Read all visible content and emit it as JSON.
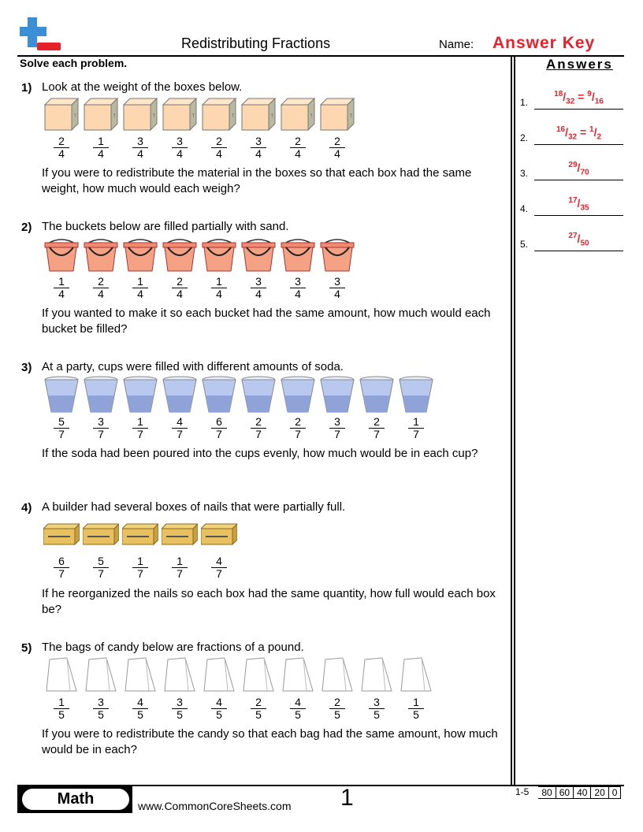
{
  "header": {
    "title": "Redistributing Fractions",
    "name_label": "Name:",
    "answer_key": "Answer Key"
  },
  "instructions": "Solve each problem.",
  "answers_heading": "Answers",
  "colors": {
    "accent": "#e8202a",
    "logo_blue": "#3a8fd6"
  },
  "problems": [
    {
      "number": "1)",
      "intro": "Look at the weight of the boxes below.",
      "icon": "box-icon",
      "fractions": [
        [
          "2",
          "4"
        ],
        [
          "1",
          "4"
        ],
        [
          "3",
          "4"
        ],
        [
          "3",
          "4"
        ],
        [
          "2",
          "4"
        ],
        [
          "3",
          "4"
        ],
        [
          "2",
          "4"
        ],
        [
          "2",
          "4"
        ]
      ],
      "question": "If you were to redistribute the material in the boxes so that each box had the same weight, how much would each weigh?"
    },
    {
      "number": "2)",
      "intro": "The buckets below are filled partially with sand.",
      "icon": "bucket-icon",
      "fractions": [
        [
          "1",
          "4"
        ],
        [
          "2",
          "4"
        ],
        [
          "1",
          "4"
        ],
        [
          "2",
          "4"
        ],
        [
          "1",
          "4"
        ],
        [
          "3",
          "4"
        ],
        [
          "3",
          "4"
        ],
        [
          "3",
          "4"
        ]
      ],
      "question": "If you wanted to make it so each bucket had the same amount, how much would each bucket be filled?"
    },
    {
      "number": "3)",
      "intro": "At a party, cups were filled with different amounts of soda.",
      "icon": "cup-icon",
      "fractions": [
        [
          "5",
          "7"
        ],
        [
          "3",
          "7"
        ],
        [
          "1",
          "7"
        ],
        [
          "4",
          "7"
        ],
        [
          "6",
          "7"
        ],
        [
          "2",
          "7"
        ],
        [
          "2",
          "7"
        ],
        [
          "3",
          "7"
        ],
        [
          "2",
          "7"
        ],
        [
          "1",
          "7"
        ]
      ],
      "question": "If the soda had been poured into the cups evenly, how much would be in each cup?"
    },
    {
      "number": "4)",
      "intro": "A builder had several boxes of nails that were partially full.",
      "icon": "nail-box-icon",
      "fractions": [
        [
          "6",
          "7"
        ],
        [
          "5",
          "7"
        ],
        [
          "1",
          "7"
        ],
        [
          "1",
          "7"
        ],
        [
          "4",
          "7"
        ]
      ],
      "question": "If he reorganized the nails so each box had the same quantity, how full would each box be?"
    },
    {
      "number": "5)",
      "intro": "The bags of candy below are fractions of a pound.",
      "icon": "candy-bag-icon",
      "fractions": [
        [
          "1",
          "5"
        ],
        [
          "3",
          "5"
        ],
        [
          "4",
          "5"
        ],
        [
          "3",
          "5"
        ],
        [
          "4",
          "5"
        ],
        [
          "2",
          "5"
        ],
        [
          "4",
          "5"
        ],
        [
          "2",
          "5"
        ],
        [
          "3",
          "5"
        ],
        [
          "1",
          "5"
        ]
      ],
      "question": "If you were to redistribute the candy so that each bag had the same amount, how much would be in each?"
    }
  ],
  "answers": [
    {
      "label": "1.",
      "parts": [
        [
          "18",
          "32"
        ],
        [
          "9",
          "16"
        ]
      ]
    },
    {
      "label": "2.",
      "parts": [
        [
          "16",
          "32"
        ],
        [
          "1",
          "2"
        ]
      ]
    },
    {
      "label": "3.",
      "parts": [
        [
          "29",
          "70"
        ]
      ]
    },
    {
      "label": "4.",
      "parts": [
        [
          "17",
          "35"
        ]
      ]
    },
    {
      "label": "5.",
      "parts": [
        [
          "27",
          "50"
        ]
      ]
    }
  ],
  "footer": {
    "subject": "Math",
    "website": "www.CommonCoreSheets.com",
    "page": "1",
    "score_range": "1-5",
    "scores": [
      "80",
      "60",
      "40",
      "20",
      "0"
    ]
  }
}
